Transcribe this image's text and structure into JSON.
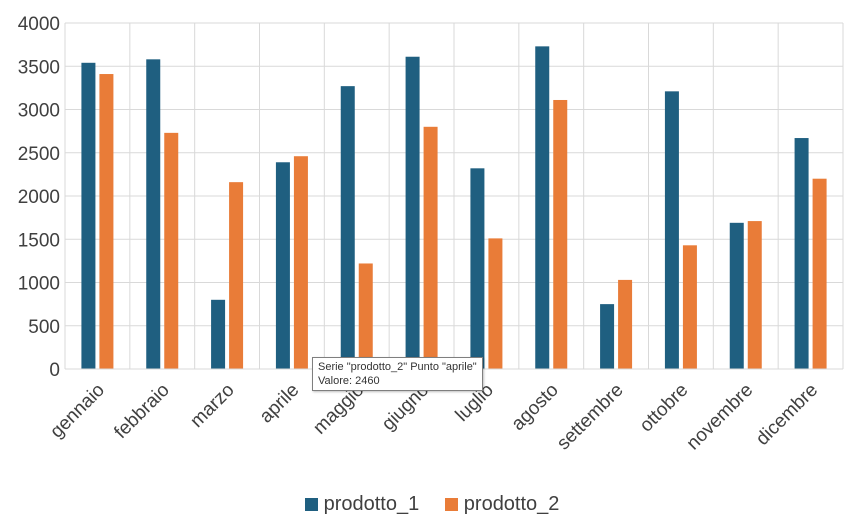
{
  "chart_data": {
    "type": "bar",
    "categories": [
      "gennaio",
      "febbraio",
      "marzo",
      "aprile",
      "maggio",
      "giugno",
      "luglio",
      "agosto",
      "settembre",
      "ottobre",
      "novembre",
      "dicembre"
    ],
    "series": [
      {
        "name": "prodotto_1",
        "color": "#1f5f80",
        "values": [
          3540,
          3580,
          800,
          2390,
          3270,
          3610,
          2320,
          3730,
          750,
          3210,
          1690,
          2670
        ]
      },
      {
        "name": "prodotto_2",
        "color": "#e97c38",
        "values": [
          3410,
          2730,
          2160,
          2460,
          1220,
          2800,
          1510,
          3110,
          1030,
          1430,
          1710,
          2200
        ]
      }
    ],
    "yticks": [
      "0",
      "500",
      "1000",
      "1500",
      "2000",
      "2500",
      "3000",
      "3500",
      "4000"
    ],
    "ylim": [
      0,
      4000
    ],
    "grid": true,
    "legend_position": "bottom",
    "title": "",
    "xlabel": "",
    "ylabel": ""
  },
  "tooltip": {
    "line1": "Serie \"prodotto_2\" Punto \"aprile\"",
    "line2": "Valore: 2460"
  }
}
